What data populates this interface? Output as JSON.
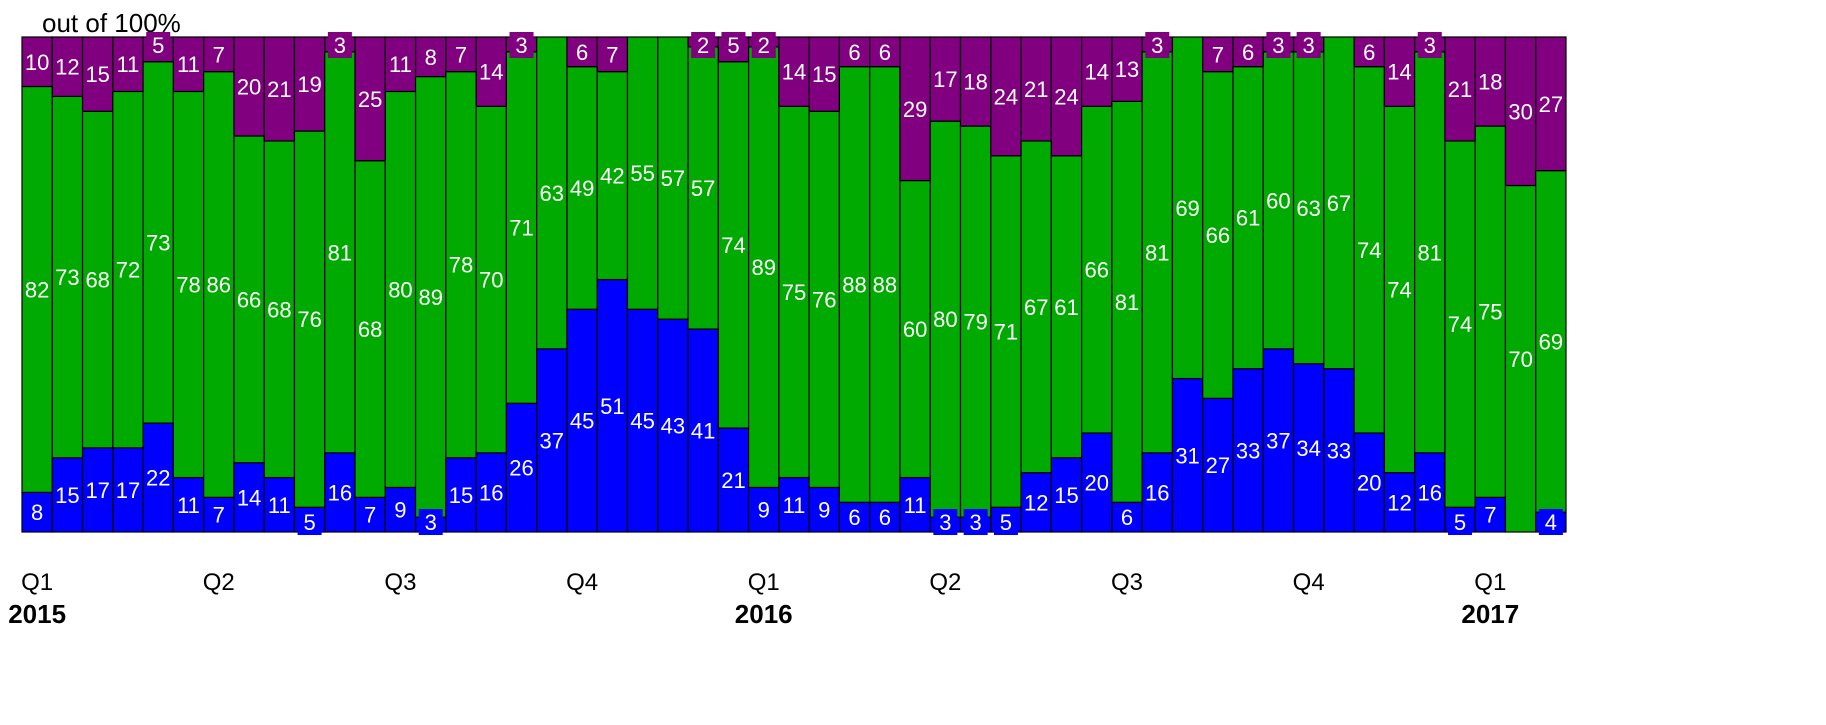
{
  "chart_data": {
    "type": "bar",
    "stacked": true,
    "percent_scale": true,
    "ylabel": "out of 100%",
    "ylim": [
      0,
      100
    ],
    "legend": "none",
    "quarter_labels": [
      "Q1",
      "Q2",
      "Q3",
      "Q4",
      "Q1",
      "Q2",
      "Q3",
      "Q4",
      "Q1"
    ],
    "year_labels": [
      "2015",
      "2016",
      "2017"
    ],
    "series": [
      {
        "color": "#0000ff",
        "values": [
          8,
          15,
          17,
          17,
          22,
          11,
          7,
          14,
          11,
          5,
          16,
          7,
          9,
          3,
          15,
          16,
          26,
          37,
          45,
          51,
          45,
          43,
          41,
          21,
          9,
          11,
          9,
          6,
          6,
          11,
          3,
          3,
          5,
          12,
          15,
          20,
          6,
          16,
          31,
          27,
          33,
          37,
          34,
          33,
          20,
          12,
          16,
          5,
          7,
          0,
          4
        ],
        "labels": [
          "8",
          "15",
          "17",
          "17",
          "22",
          "11",
          "7",
          "14",
          "11",
          "5",
          "16",
          "7",
          "9",
          "3",
          "15",
          "16",
          "26",
          "37",
          "45",
          "51",
          "45",
          "43",
          "41",
          "21",
          "9",
          "11",
          "9",
          "6",
          "6",
          "11",
          "3",
          "3",
          "5",
          "12",
          "15",
          "20",
          "6",
          "16",
          "31",
          "27",
          "33",
          "37",
          "34",
          "33",
          "20",
          "12",
          "16",
          "5",
          "7",
          "",
          "4"
        ]
      },
      {
        "color": "#00aa00",
        "values": [
          82,
          73,
          68,
          72,
          73,
          78,
          86,
          66,
          68,
          76,
          81,
          68,
          80,
          89,
          78,
          70,
          71,
          63,
          49,
          42,
          55,
          57,
          57,
          74,
          89,
          75,
          76,
          88,
          88,
          60,
          80,
          79,
          71,
          67,
          61,
          66,
          81,
          81,
          69,
          66,
          61,
          60,
          63,
          67,
          74,
          74,
          81,
          74,
          75,
          70,
          69
        ],
        "labels": [
          "82",
          "73",
          "68",
          "72",
          "73",
          "78",
          "86",
          "66",
          "68",
          "76",
          "81",
          "68",
          "80",
          "89",
          "78",
          "70",
          "71",
          "63",
          "49",
          "42",
          "55",
          "57",
          "57",
          "74",
          "89",
          "75",
          "76",
          "88",
          "88",
          "60",
          "80",
          "79",
          "71",
          "67",
          "61",
          "66",
          "81",
          "81",
          "69",
          "66",
          "61",
          "60",
          "63",
          "67",
          "74",
          "74",
          "81",
          "74",
          "75",
          "70",
          "69"
        ]
      },
      {
        "color": "#800080",
        "values": [
          10,
          12,
          15,
          11,
          5,
          11,
          7,
          20,
          21,
          19,
          3,
          25,
          11,
          8,
          7,
          14,
          3,
          0,
          6,
          7,
          0,
          0,
          2,
          5,
          2,
          14,
          15,
          6,
          6,
          29,
          17,
          18,
          24,
          21,
          24,
          14,
          13,
          3,
          0,
          7,
          6,
          3,
          3,
          0,
          6,
          14,
          3,
          21,
          18,
          30,
          27
        ],
        "labels": [
          "10",
          "12",
          "15",
          "11",
          "5",
          "11",
          "7",
          "20",
          "21",
          "19",
          "3",
          "25",
          "11",
          "8",
          "7",
          "14",
          "3",
          "",
          "6",
          "7",
          "",
          "",
          "2",
          "5",
          "2",
          "14",
          "15",
          "6",
          "6",
          "29",
          "17",
          "18",
          "24",
          "21",
          "24",
          "14",
          "13",
          "3",
          "",
          "7",
          "6",
          "3",
          "3",
          "",
          "6",
          "14",
          "3",
          "21",
          "18",
          "30",
          "27"
        ]
      }
    ]
  }
}
